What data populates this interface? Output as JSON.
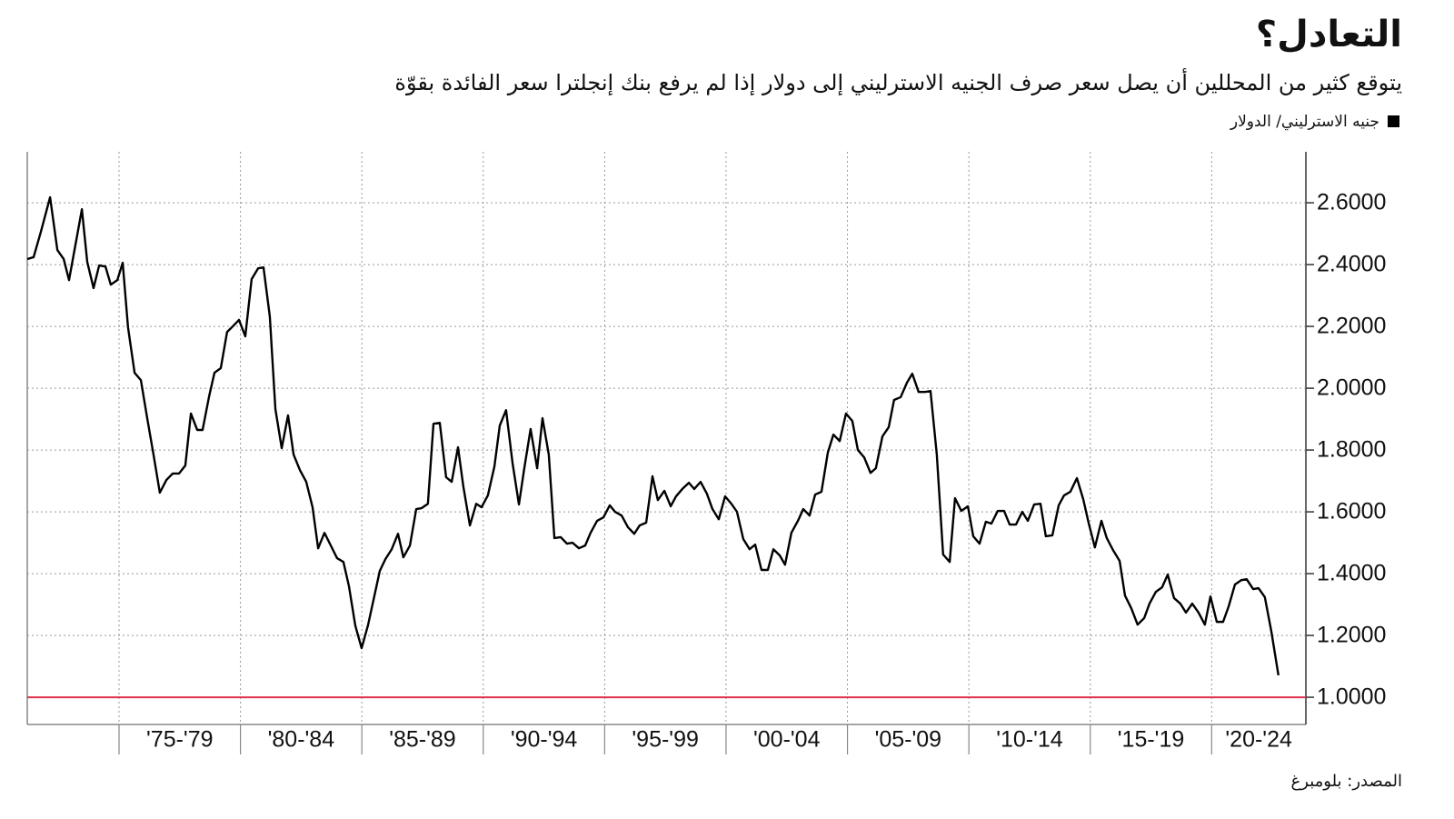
{
  "chart_data": {
    "type": "line",
    "title": "التعادل؟",
    "subtitle": "يتوقع كثير من المحللين أن يصل سعر صرف الجنيه الاسترليني إلى دولار إذا لم يرفع بنك إنجلترا سعر الفائدة بقوّة",
    "source": "المصدر: بلومبرغ",
    "x": [
      1971.22,
      1971.48,
      1971.78,
      1972.16,
      1972.46,
      1972.72,
      1972.94,
      1973.2,
      1973.47,
      1973.69,
      1973.95,
      1974.18,
      1974.44,
      1974.66,
      1974.93,
      1975.15,
      1975.37,
      1975.64,
      1975.9,
      1976.16,
      1976.42,
      1976.68,
      1976.95,
      1977.21,
      1977.47,
      1977.73,
      1977.96,
      1978.22,
      1978.44,
      1978.71,
      1978.93,
      1979.19,
      1979.45,
      1979.72,
      1979.94,
      1980.2,
      1980.46,
      1980.73,
      1980.95,
      1981.21,
      1981.44,
      1981.7,
      1981.96,
      1982.19,
      1982.45,
      1982.71,
      1982.97,
      1983.2,
      1983.46,
      1983.72,
      1983.98,
      1984.24,
      1984.47,
      1984.73,
      1984.99,
      1985.25,
      1985.48,
      1985.74,
      1985.97,
      1986.23,
      1986.49,
      1986.71,
      1986.98,
      1987.24,
      1987.46,
      1987.72,
      1987.95,
      1988.21,
      1988.47,
      1988.7,
      1988.96,
      1989.18,
      1989.45,
      1989.71,
      1989.93,
      1990.19,
      1990.46,
      1990.68,
      1990.94,
      1991.21,
      1991.47,
      1991.69,
      1991.95,
      1992.22,
      1992.44,
      1992.7,
      1992.93,
      1993.19,
      1993.45,
      1993.68,
      1993.94,
      1994.2,
      1994.42,
      1994.69,
      1994.95,
      1995.21,
      1995.43,
      1995.7,
      1995.96,
      1996.22,
      1996.44,
      1996.71,
      1996.97,
      1997.19,
      1997.46,
      1997.72,
      1997.94,
      1998.2,
      1998.47,
      1998.69,
      1998.95,
      1999.21,
      1999.44,
      1999.7,
      1999.96,
      2000.22,
      2000.45,
      2000.71,
      2000.97,
      2001.2,
      2001.46,
      2001.72,
      2001.95,
      2002.21,
      2002.43,
      2002.69,
      2002.96,
      2003.18,
      2003.44,
      2003.67,
      2003.93,
      2004.19,
      2004.42,
      2004.68,
      2004.94,
      2005.2,
      2005.43,
      2005.69,
      2005.95,
      2006.17,
      2006.44,
      2006.7,
      2006.92,
      2007.19,
      2007.45,
      2007.67,
      2007.93,
      2008.2,
      2008.42,
      2008.68,
      2008.94,
      2009.21,
      2009.43,
      2009.69,
      2009.96,
      2010.18,
      2010.44,
      2010.7,
      2010.93,
      2011.19,
      2011.45,
      2011.68,
      2011.94,
      2012.2,
      2012.43,
      2012.69,
      2012.95,
      2013.17,
      2013.44,
      2013.7,
      2013.92,
      2014.18,
      2014.45,
      2014.71,
      2014.93,
      2015.19,
      2015.46,
      2015.68,
      2015.94,
      2016.21,
      2016.43,
      2016.69,
      2016.95,
      2017.22,
      2017.44,
      2017.7,
      2017.96,
      2018.19,
      2018.45,
      2018.71,
      2018.94,
      2019.2,
      2019.46,
      2019.72,
      2019.95,
      2020.21,
      2020.47,
      2020.7,
      2020.96,
      2021.22,
      2021.44,
      2021.71,
      2021.93,
      2022.19,
      2022.46,
      2022.75
    ],
    "series": [
      {
        "name": "جنيه الاسترليني/ الدولار",
        "color": "#000000",
        "values": [
          2.418,
          2.424,
          2.506,
          2.618,
          2.447,
          2.418,
          2.35,
          2.462,
          2.579,
          2.409,
          2.324,
          2.397,
          2.394,
          2.335,
          2.35,
          2.406,
          2.197,
          2.05,
          2.026,
          1.903,
          1.785,
          1.662,
          1.703,
          1.724,
          1.724,
          1.75,
          1.918,
          1.865,
          1.865,
          1.974,
          2.05,
          2.065,
          2.182,
          2.203,
          2.221,
          2.168,
          2.353,
          2.388,
          2.391,
          2.232,
          1.932,
          1.806,
          1.912,
          1.785,
          1.735,
          1.697,
          1.615,
          1.482,
          1.532,
          1.491,
          1.45,
          1.438,
          1.359,
          1.232,
          1.159,
          1.232,
          1.315,
          1.409,
          1.447,
          1.479,
          1.529,
          1.453,
          1.491,
          1.609,
          1.612,
          1.626,
          1.885,
          1.888,
          1.712,
          1.697,
          1.809,
          1.682,
          1.556,
          1.626,
          1.615,
          1.653,
          1.747,
          1.879,
          1.929,
          1.756,
          1.624,
          1.741,
          1.868,
          1.741,
          1.903,
          1.785,
          1.515,
          1.518,
          1.497,
          1.5,
          1.482,
          1.491,
          1.532,
          1.571,
          1.582,
          1.621,
          1.6,
          1.588,
          1.55,
          1.529,
          1.556,
          1.565,
          1.715,
          1.638,
          1.668,
          1.618,
          1.65,
          1.674,
          1.694,
          1.674,
          1.697,
          1.659,
          1.609,
          1.576,
          1.65,
          1.626,
          1.6,
          1.512,
          1.479,
          1.494,
          1.412,
          1.412,
          1.479,
          1.459,
          1.429,
          1.532,
          1.571,
          1.609,
          1.588,
          1.656,
          1.665,
          1.791,
          1.85,
          1.829,
          1.918,
          1.894,
          1.8,
          1.776,
          1.726,
          1.741,
          1.844,
          1.874,
          1.962,
          1.971,
          2.018,
          2.047,
          1.988,
          1.988,
          1.991,
          1.785,
          1.462,
          1.438,
          1.644,
          1.603,
          1.618,
          1.521,
          1.497,
          1.568,
          1.562,
          1.603,
          1.603,
          1.559,
          1.559,
          1.6,
          1.571,
          1.624,
          1.626,
          1.521,
          1.524,
          1.621,
          1.653,
          1.665,
          1.709,
          1.641,
          1.565,
          1.485,
          1.571,
          1.515,
          1.476,
          1.441,
          1.329,
          1.288,
          1.235,
          1.256,
          1.303,
          1.341,
          1.356,
          1.397,
          1.321,
          1.303,
          1.274,
          1.303,
          1.274,
          1.235,
          1.326,
          1.244,
          1.244,
          1.294,
          1.365,
          1.379,
          1.382,
          1.35,
          1.353,
          1.324,
          1.212,
          1.071
        ]
      }
    ],
    "reference_line": {
      "value": 1.0,
      "color": "#e0314b"
    },
    "xlim": [
      1971.22,
      2023.88
    ],
    "xticks": [
      {
        "value": 1975,
        "label": "'75-'79"
      },
      {
        "value": 1980,
        "label": "'80-'84"
      },
      {
        "value": 1985,
        "label": "'85-'89"
      },
      {
        "value": 1990,
        "label": "'90-'94"
      },
      {
        "value": 1995,
        "label": "'95-'99"
      },
      {
        "value": 2000,
        "label": "'00-'04"
      },
      {
        "value": 2005,
        "label": "'05-'09"
      },
      {
        "value": 2010,
        "label": "'10-'14"
      },
      {
        "value": 2015,
        "label": "'15-'19"
      },
      {
        "value": 2020,
        "label": "'20-'24"
      }
    ],
    "ylim": [
      0.912,
      2.765
    ],
    "yticks": [
      {
        "value": 1.0,
        "label": "1.0000"
      },
      {
        "value": 1.2,
        "label": "1.2000"
      },
      {
        "value": 1.4,
        "label": "1.4000"
      },
      {
        "value": 1.6,
        "label": "1.6000"
      },
      {
        "value": 1.8,
        "label": "1.8000"
      },
      {
        "value": 2.0,
        "label": "2.0000"
      },
      {
        "value": 2.2,
        "label": "2.2000"
      },
      {
        "value": 2.4,
        "label": "2.4000"
      },
      {
        "value": 2.6,
        "label": "2.6000"
      }
    ],
    "grid": true
  }
}
